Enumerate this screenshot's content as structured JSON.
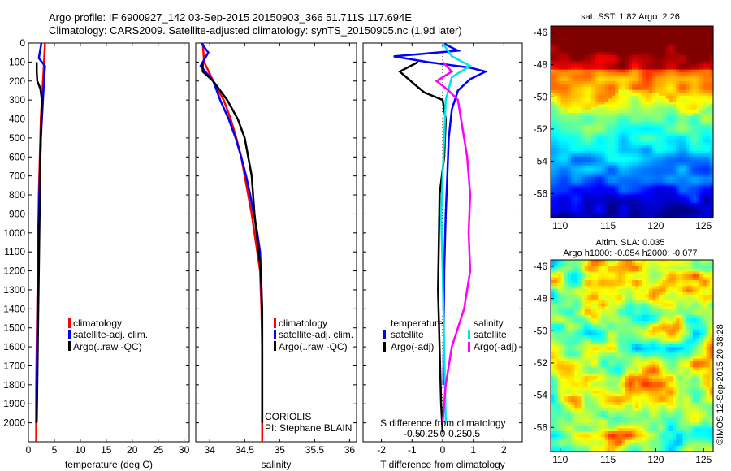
{
  "header": {
    "line1": "Argo profile: IF 6900927_142 03-Sep-2015 20150903_366 51.711S 117.694E",
    "line2": "Climatology: CARS2009. Satellite-adjusted climatology: synTS_20150905.nc (1.9d later)"
  },
  "colors": {
    "climatology": "#ff0000",
    "satellite": "#0000ff",
    "argo": "#000000",
    "sat_s": "#00e5e5",
    "argo_s": "#ff00ff"
  },
  "chart_data": [
    {
      "type": "line",
      "xlabel": "temperature (deg C)",
      "xlim": [
        0,
        31
      ],
      "ylim": [
        2100,
        0
      ],
      "xticks": [
        "0",
        "5",
        "10",
        "15",
        "20",
        "25",
        "30"
      ],
      "xtick_values": [
        0,
        5,
        10,
        15,
        20,
        25,
        30
      ],
      "yticks": [
        "0",
        "100",
        "200",
        "300",
        "400",
        "500",
        "600",
        "700",
        "800",
        "900",
        "1000",
        "1100",
        "1200",
        "1300",
        "1400",
        "1500",
        "1600",
        "1700",
        "1800",
        "1900",
        "2000"
      ],
      "legend": [
        "climatology",
        "satellite-adj. clim.",
        "Argo(..raw -QC)"
      ],
      "series": [
        {
          "name": "climatology",
          "color": "#ff0000",
          "x": [
            3.2,
            3.0,
            2.8,
            2.6,
            2.4,
            2.3,
            2.2,
            2.1,
            2.0,
            1.95,
            1.9,
            1.85,
            1.8,
            1.75,
            1.7,
            1.65,
            1.6,
            1.55,
            1.5,
            1.5
          ],
          "y": [
            0,
            100,
            200,
            300,
            400,
            500,
            600,
            700,
            800,
            900,
            1000,
            1100,
            1200,
            1300,
            1400,
            1500,
            1600,
            1700,
            1800,
            2100
          ]
        },
        {
          "name": "satellite-adj. clim.",
          "color": "#0000ff",
          "x": [
            2.5,
            2.0,
            3.2,
            3.0,
            2.8,
            2.6,
            2.4,
            2.3,
            2.2,
            2.1,
            2.0,
            1.9,
            1.8,
            1.7,
            1.6,
            1.5
          ],
          "y": [
            0,
            80,
            120,
            200,
            300,
            400,
            500,
            600,
            700,
            800,
            900,
            1000,
            1200,
            1500,
            1800,
            2000
          ]
        },
        {
          "name": "Argo(..raw -QC)",
          "color": "#000000",
          "x": [
            1.6,
            1.6,
            1.7,
            2.3,
            2.6,
            2.5,
            2.4,
            2.3,
            2.2,
            2.1,
            2.0,
            1.9,
            1.8,
            1.7,
            1.6
          ],
          "y": [
            100,
            150,
            200,
            240,
            300,
            400,
            500,
            600,
            800,
            1000,
            1200,
            1400,
            1600,
            1800,
            2000
          ]
        }
      ]
    },
    {
      "type": "line",
      "xlabel": "salinity",
      "xlim": [
        33.8,
        36.1
      ],
      "ylim": [
        2100,
        0
      ],
      "xticks": [
        "34",
        "34.5",
        "35",
        "35.5",
        "36"
      ],
      "xtick_values": [
        34,
        34.5,
        35,
        35.5,
        36
      ],
      "legend": [
        "climatology",
        "satellite-adj. clim.",
        "Argo(..raw -QC)"
      ],
      "annotation": [
        "CORIOLIS",
        "PI: Stephane BLAIN"
      ],
      "series": [
        {
          "name": "climatology",
          "color": "#ff0000",
          "x": [
            33.9,
            33.92,
            34.05,
            34.2,
            34.3,
            34.38,
            34.45,
            34.5,
            34.55,
            34.6,
            34.64,
            34.68,
            34.72,
            34.74,
            34.75,
            34.75
          ],
          "y": [
            0,
            100,
            200,
            300,
            400,
            500,
            600,
            700,
            800,
            900,
            1000,
            1100,
            1200,
            1400,
            1600,
            2100
          ]
        },
        {
          "name": "satellite-adj. clim.",
          "color": "#0000ff",
          "x": [
            33.88,
            33.98,
            33.87,
            34.05,
            34.15,
            34.27,
            34.37,
            34.45,
            34.52,
            34.58,
            34.63,
            34.68,
            34.72,
            34.74,
            34.75,
            34.75
          ],
          "y": [
            0,
            50,
            120,
            200,
            300,
            400,
            500,
            600,
            700,
            800,
            900,
            1000,
            1100,
            1300,
            1500,
            2000
          ]
        },
        {
          "name": "Argo(..raw -QC)",
          "color": "#000000",
          "x": [
            33.9,
            33.9,
            34.05,
            34.25,
            34.4,
            34.5,
            34.55,
            34.6,
            34.62,
            34.64,
            34.67,
            34.7,
            34.73,
            34.75,
            34.75
          ],
          "y": [
            100,
            150,
            200,
            300,
            400,
            500,
            600,
            700,
            800,
            900,
            1000,
            1100,
            1200,
            1400,
            2000
          ]
        }
      ]
    },
    {
      "type": "line",
      "xlabel": "T difference from climatology",
      "toplabel": "S difference from climatology",
      "xlim": [
        -2.6,
        2.6
      ],
      "ylim": [
        2100,
        0
      ],
      "xticks": [
        "-2",
        "-1",
        "0",
        "1",
        "2"
      ],
      "xtick_values": [
        -2,
        -1,
        0,
        1,
        2
      ],
      "sticks": [
        "-0.5",
        "-0.25",
        "0",
        "0.25",
        "0.5"
      ],
      "stick_values": [
        -1,
        -0.5,
        0,
        0.5,
        1
      ],
      "legend_titles": [
        "temperature",
        "salinity"
      ],
      "legend_left": [
        "satellite",
        "Argo(-adj)"
      ],
      "legend_right": [
        "satellite",
        "Argo(-adj)"
      ],
      "series": [
        {
          "name": "satellite (T)",
          "color": "#0000ff",
          "x": [
            0,
            0.5,
            -1.6,
            -0.5,
            0.9,
            1.4,
            0.9,
            0.5,
            0.3,
            0.2,
            0.15,
            0.1,
            0.05,
            0.02
          ],
          "y": [
            0,
            40,
            70,
            100,
            130,
            150,
            190,
            250,
            350,
            500,
            700,
            900,
            1200,
            1800
          ]
        },
        {
          "name": "Argo(-adj) (T)",
          "color": "#000000",
          "x": [
            -0.8,
            -1.4,
            -0.9,
            -0.6,
            0,
            0.1,
            0.05,
            -0.1,
            -0.12,
            -0.15,
            -0.1,
            -0.05,
            0
          ],
          "y": [
            100,
            150,
            220,
            260,
            300,
            400,
            600,
            800,
            1000,
            1300,
            1600,
            1900,
            2050
          ]
        },
        {
          "name": "satellite (S)",
          "color": "#00e5e5",
          "x": [
            0,
            0.3,
            0.9,
            0.3,
            0.1,
            0.05,
            0,
            -0.05,
            0,
            0.05,
            0.1
          ],
          "y": [
            0,
            70,
            120,
            180,
            300,
            500,
            700,
            900,
            1200,
            1600,
            2000
          ]
        },
        {
          "name": "Argo(-adj) (S)",
          "color": "#ff00ff",
          "x": [
            0,
            0.3,
            -0.2,
            0.2,
            0.5,
            0.6,
            0.7,
            0.8,
            0.9,
            0.85,
            0.9,
            0.7,
            0.3,
            0.1,
            0
          ],
          "y": [
            100,
            150,
            200,
            250,
            300,
            400,
            500,
            600,
            800,
            1000,
            1200,
            1400,
            1600,
            1800,
            2000
          ]
        }
      ]
    },
    {
      "type": "heatmap",
      "title": "sat. SST: 1.82 Argo: 2.26",
      "xticks": [
        "110",
        "115",
        "120",
        "125"
      ],
      "xtick_values": [
        110,
        115,
        120,
        125
      ],
      "yticks": [
        "-46",
        "-48",
        "-50",
        "-52",
        "-54",
        "-56"
      ],
      "ytick_values": [
        -46,
        -48,
        -50,
        -52,
        -54,
        -56
      ],
      "xlim": [
        109,
        126
      ],
      "ylim": [
        -57.5,
        -45.6
      ]
    },
    {
      "type": "heatmap",
      "title": "Altim. SLA: 0.035",
      "subtitle": "Argo h1000: -0.054 h2000: -0.077",
      "xticks": [
        "110",
        "115",
        "120",
        "125"
      ],
      "xtick_values": [
        110,
        115,
        120,
        125
      ],
      "yticks": [
        "-46",
        "-48",
        "-50",
        "-52",
        "-54",
        "-56"
      ],
      "ytick_values": [
        -46,
        -48,
        -50,
        -52,
        -54,
        -56
      ],
      "xlim": [
        109,
        126
      ],
      "ylim": [
        -57.5,
        -45.6
      ]
    }
  ],
  "footer": {
    "stamp": "©IMOS 12-Sep-2015 20:38:28"
  }
}
